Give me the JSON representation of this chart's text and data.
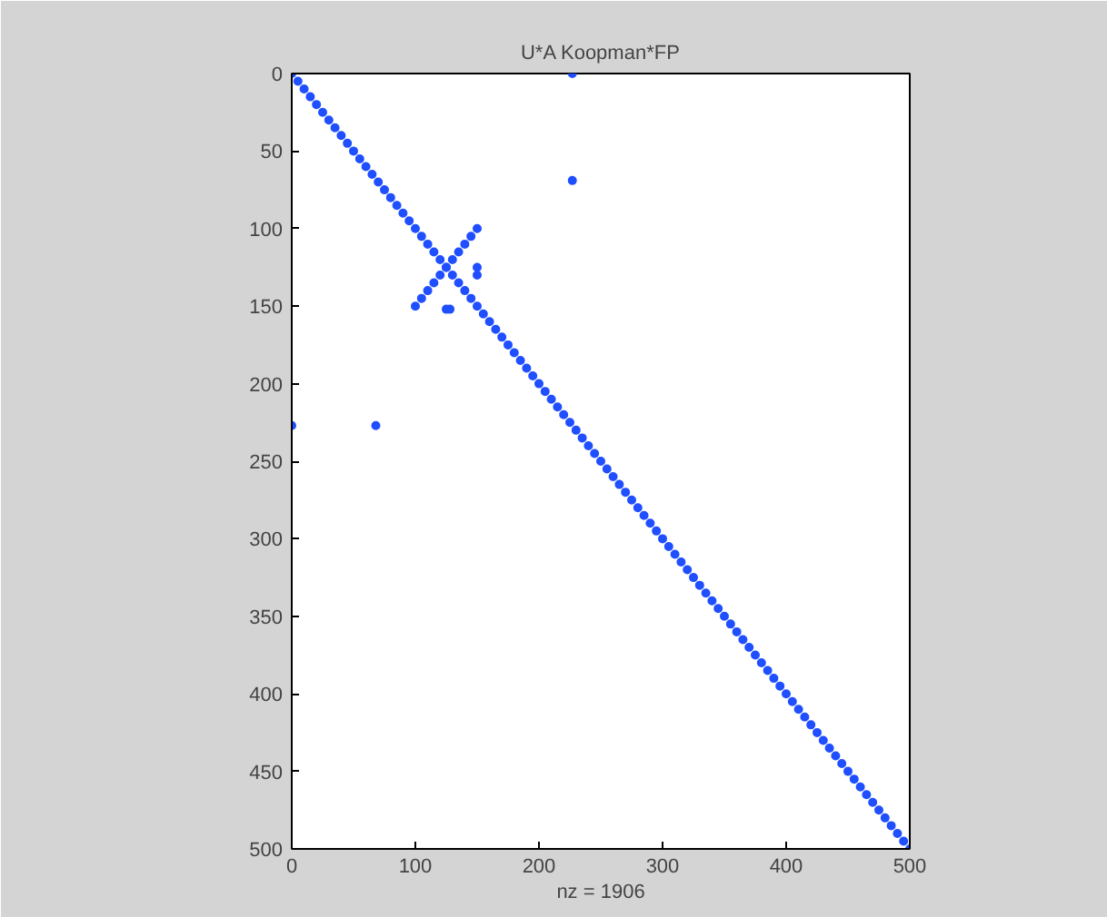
{
  "chart_data": {
    "type": "scatter",
    "title": "U*A Koopman*FP",
    "xlabel": "nz = 1906",
    "xlim": [
      0,
      500
    ],
    "ylim": [
      500,
      0
    ],
    "xticks": [
      0,
      100,
      200,
      300,
      400,
      500
    ],
    "yticks": [
      0,
      50,
      100,
      150,
      200,
      250,
      300,
      350,
      400,
      450,
      500
    ],
    "grid": false,
    "marker": "circle",
    "series": [
      {
        "color": "#1f4fff",
        "x": [
          0,
          5,
          10,
          15,
          20,
          25,
          30,
          35,
          40,
          45,
          50,
          55,
          60,
          65,
          70,
          75,
          80,
          85,
          90,
          95,
          100,
          105,
          110,
          115,
          120,
          125,
          130,
          135,
          140,
          145,
          150,
          155,
          160,
          165,
          170,
          175,
          180,
          185,
          190,
          195,
          200,
          205,
          210,
          215,
          220,
          225,
          230,
          235,
          240,
          245,
          250,
          255,
          260,
          265,
          270,
          275,
          280,
          285,
          290,
          295,
          300,
          305,
          310,
          315,
          320,
          325,
          330,
          335,
          340,
          345,
          350,
          355,
          360,
          365,
          370,
          375,
          380,
          385,
          390,
          395,
          400,
          405,
          410,
          415,
          420,
          425,
          430,
          435,
          440,
          445,
          450,
          455,
          460,
          465,
          470,
          475,
          480,
          485,
          490,
          495,
          500,
          100,
          105,
          110,
          115,
          120,
          125,
          130,
          135,
          140,
          145,
          150,
          227,
          227,
          0,
          68,
          150,
          150,
          125,
          128
        ],
        "values": [
          0,
          5,
          10,
          15,
          20,
          25,
          30,
          35,
          40,
          45,
          50,
          55,
          60,
          65,
          70,
          75,
          80,
          85,
          90,
          95,
          100,
          105,
          110,
          115,
          120,
          125,
          130,
          135,
          140,
          145,
          150,
          155,
          160,
          165,
          170,
          175,
          180,
          185,
          190,
          195,
          200,
          205,
          210,
          215,
          220,
          225,
          230,
          235,
          240,
          245,
          250,
          255,
          260,
          265,
          270,
          275,
          280,
          285,
          290,
          295,
          300,
          305,
          310,
          315,
          320,
          325,
          330,
          335,
          340,
          345,
          350,
          355,
          360,
          365,
          370,
          375,
          380,
          385,
          390,
          395,
          400,
          405,
          410,
          415,
          420,
          425,
          430,
          435,
          440,
          445,
          450,
          455,
          460,
          465,
          470,
          475,
          480,
          485,
          490,
          495,
          500,
          150,
          145,
          140,
          135,
          130,
          125,
          120,
          115,
          110,
          105,
          100,
          0,
          69,
          227,
          227,
          125,
          130,
          152,
          152
        ]
      }
    ]
  }
}
